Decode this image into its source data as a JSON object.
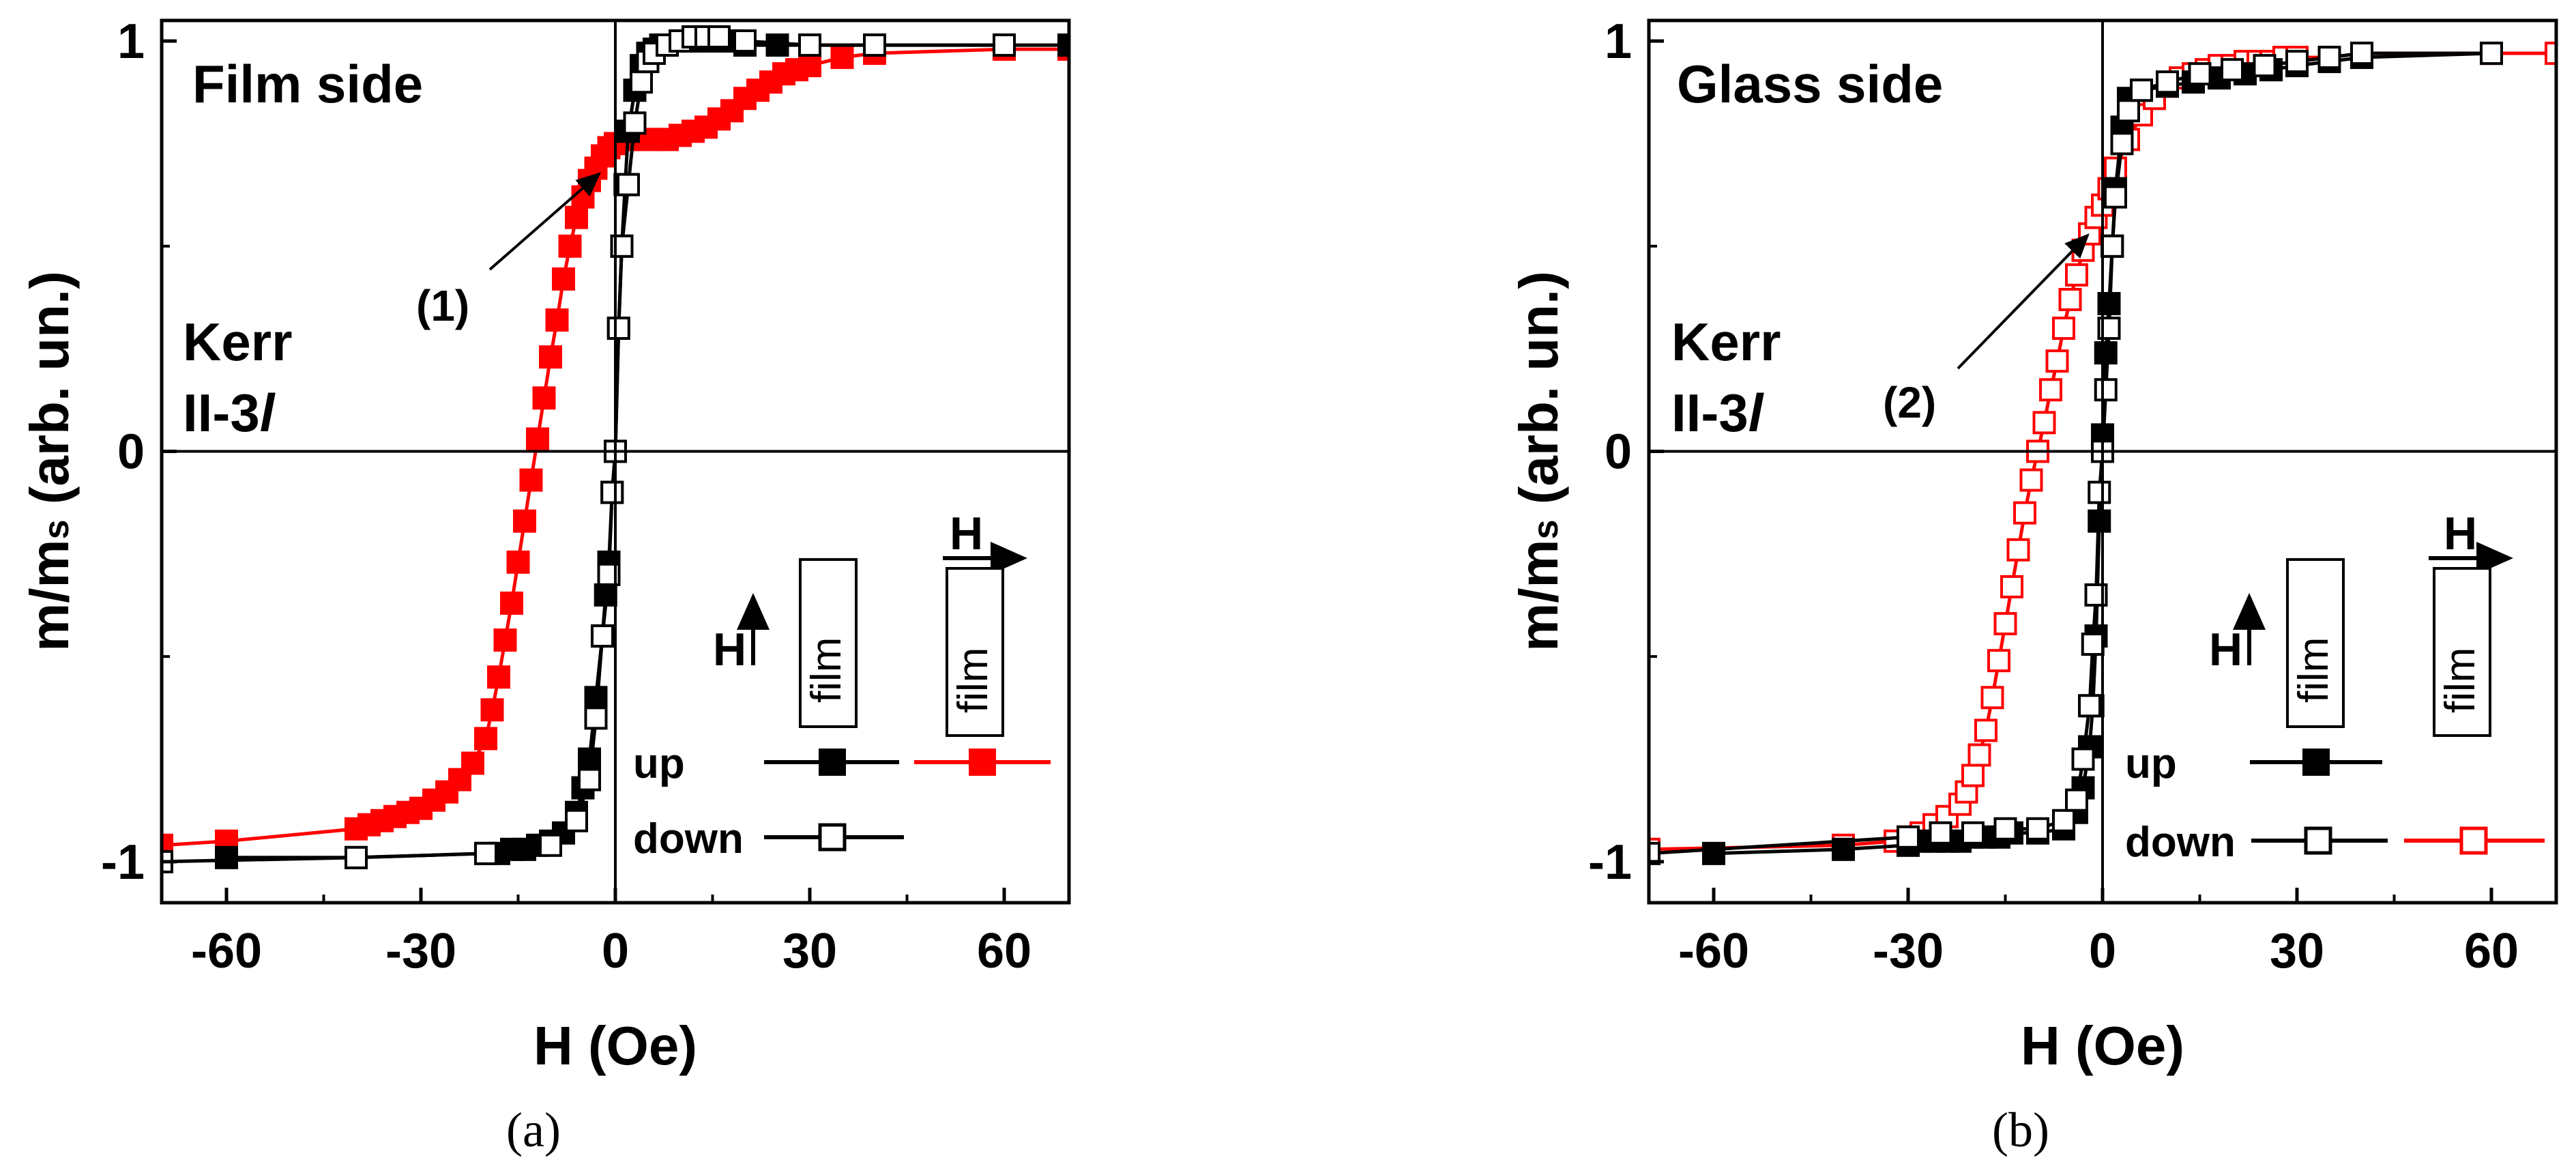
{
  "chart_data": [
    {
      "type": "line",
      "panel": "a",
      "caption": "(a)",
      "title": "Film side",
      "label_kerr": "Kerr",
      "label_config": "II-3",
      "label_config_italic": "l",
      "annotation": "(1)",
      "xlabel": "H (Oe)",
      "ylabel_main": "m/m",
      "ylabel_sub": "s",
      "ylabel_tail": " (arb. un.)",
      "xlim": [
        -70,
        70
      ],
      "ylim": [
        -1.1,
        1.05
      ],
      "xticks": [
        -60,
        -30,
        0,
        30,
        60
      ],
      "yticks": [
        -1,
        0,
        1
      ],
      "legend": {
        "up": "up",
        "down": "down",
        "field_symbol": "H",
        "film": "film"
      },
      "series": [
        {
          "name": "up (H perpendicular to film)",
          "color": "#000000",
          "marker": "filled",
          "x": [
            -60,
            -40,
            -20,
            -18,
            -16,
            -14,
            -12,
            -10,
            -8,
            -6,
            -5,
            -4,
            -3,
            -2,
            -1.5,
            -1,
            -0.5,
            0,
            0.5,
            1,
            1.5,
            2,
            3,
            4,
            5,
            6,
            7,
            8,
            10,
            12,
            14,
            16,
            18,
            20,
            25,
            30,
            40,
            60,
            70
          ],
          "y": [
            -0.99,
            -0.99,
            -0.98,
            -0.98,
            -0.97,
            -0.97,
            -0.96,
            -0.95,
            -0.93,
            -0.88,
            -0.82,
            -0.75,
            -0.6,
            -0.45,
            -0.35,
            -0.27,
            -0.1,
            0,
            0.3,
            0.5,
            0.65,
            0.78,
            0.88,
            0.94,
            0.97,
            0.98,
            0.99,
            0.99,
            1.0,
            1.0,
            1.0,
            1.0,
            1.0,
            0.99,
            0.99,
            0.99,
            0.99,
            0.99,
            0.99
          ]
        },
        {
          "name": "down (H perpendicular to film)",
          "color": "#000000",
          "marker": "open",
          "x": [
            -70,
            -40,
            -20,
            -10,
            -6,
            -4,
            -3,
            -2,
            -1,
            -0.5,
            0,
            0.5,
            1,
            2,
            3,
            4,
            5,
            6,
            8,
            10,
            12,
            14,
            16,
            20,
            30,
            40,
            60
          ],
          "y": [
            -1.0,
            -0.99,
            -0.98,
            -0.96,
            -0.9,
            -0.8,
            -0.65,
            -0.45,
            -0.3,
            -0.1,
            0.0,
            0.3,
            0.5,
            0.65,
            0.8,
            0.9,
            0.95,
            0.97,
            0.99,
            1.0,
            1.01,
            1.01,
            1.01,
            1.0,
            0.99,
            0.99,
            0.99
          ]
        },
        {
          "name": "up (H parallel to film)",
          "color": "#ff0000",
          "marker": "filled",
          "x": [
            -70,
            -60,
            -40,
            -38,
            -36,
            -34,
            -32,
            -30,
            -28,
            -26,
            -24,
            -22,
            -20,
            -19,
            -18,
            -17,
            -16,
            -15,
            -14,
            -13,
            -12,
            -11,
            -10,
            -9,
            -8,
            -7,
            -6,
            -5,
            -4,
            -3,
            -2,
            -1,
            0,
            2,
            4,
            6,
            8,
            10,
            12,
            14,
            16,
            18,
            20,
            22,
            24,
            26,
            28,
            30,
            35,
            40,
            60,
            70
          ],
          "y": [
            -0.96,
            -0.95,
            -0.92,
            -0.91,
            -0.9,
            -0.89,
            -0.88,
            -0.87,
            -0.85,
            -0.83,
            -0.8,
            -0.76,
            -0.7,
            -0.63,
            -0.55,
            -0.46,
            -0.37,
            -0.27,
            -0.17,
            -0.07,
            0.03,
            0.13,
            0.23,
            0.32,
            0.42,
            0.5,
            0.57,
            0.62,
            0.66,
            0.69,
            0.72,
            0.74,
            0.75,
            0.76,
            0.76,
            0.76,
            0.76,
            0.77,
            0.78,
            0.79,
            0.81,
            0.83,
            0.86,
            0.88,
            0.9,
            0.92,
            0.93,
            0.94,
            0.96,
            0.97,
            0.98,
            0.98
          ]
        }
      ]
    },
    {
      "type": "line",
      "panel": "b",
      "caption": "(b)",
      "title": "Glass side",
      "label_kerr": "Kerr",
      "label_config": "II-3",
      "label_config_italic": "l",
      "annotation": "(2)",
      "xlabel": "H (Oe)",
      "ylabel_main": "m/m",
      "ylabel_sub": "s",
      "ylabel_tail": " (arb. un.)",
      "xlim": [
        -70,
        70
      ],
      "ylim": [
        -1.1,
        1.05
      ],
      "xticks": [
        -60,
        -30,
        0,
        30,
        60
      ],
      "yticks": [
        -1,
        0,
        1
      ],
      "legend": {
        "up": "up",
        "down": "down",
        "field_symbol": "H",
        "film": "film"
      },
      "series": [
        {
          "name": "up (H perpendicular to film)",
          "color": "#000000",
          "marker": "filled",
          "x": [
            -60,
            -40,
            -30,
            -28,
            -26,
            -24,
            -22,
            -20,
            -18,
            -16,
            -14,
            -10,
            -6,
            -4,
            -3,
            -2,
            -1.5,
            -1,
            -0.5,
            0,
            0.5,
            1,
            1.5,
            2,
            3,
            4,
            6,
            10,
            14,
            18,
            22,
            26,
            30,
            35,
            40,
            60
          ],
          "y": [
            -0.98,
            -0.97,
            -0.96,
            -0.95,
            -0.95,
            -0.95,
            -0.95,
            -0.94,
            -0.94,
            -0.94,
            -0.93,
            -0.93,
            -0.92,
            -0.88,
            -0.82,
            -0.72,
            -0.62,
            -0.45,
            -0.17,
            0.04,
            0.24,
            0.36,
            0.5,
            0.64,
            0.79,
            0.86,
            0.88,
            0.89,
            0.9,
            0.91,
            0.92,
            0.93,
            0.94,
            0.95,
            0.96,
            0.97
          ]
        },
        {
          "name": "down (H perpendicular to film)",
          "color": "#000000",
          "marker": "open",
          "x": [
            -70,
            -30,
            -25,
            -20,
            -15,
            -10,
            -6,
            -4,
            -3,
            -2,
            -1.5,
            -1,
            -0.5,
            0,
            0.5,
            1,
            1.5,
            2,
            3,
            4,
            6,
            10,
            15,
            20,
            25,
            30,
            35,
            40,
            60
          ],
          "y": [
            -0.98,
            -0.94,
            -0.93,
            -0.93,
            -0.92,
            -0.92,
            -0.9,
            -0.85,
            -0.75,
            -0.62,
            -0.47,
            -0.35,
            -0.1,
            0.0,
            0.15,
            0.3,
            0.5,
            0.62,
            0.75,
            0.83,
            0.88,
            0.9,
            0.92,
            0.93,
            0.94,
            0.95,
            0.96,
            0.97,
            0.97
          ]
        },
        {
          "name": "down (H parallel to film)",
          "color": "#ff0000",
          "marker": "open",
          "x": [
            -70,
            -40,
            -32,
            -30,
            -28,
            -26,
            -24,
            -22,
            -21,
            -20,
            -19,
            -18,
            -17,
            -16,
            -15,
            -14,
            -13,
            -12,
            -11,
            -10,
            -9,
            -8,
            -7,
            -6,
            -5,
            -4,
            -3,
            -2,
            -1,
            0,
            1,
            2,
            4,
            6,
            8,
            10,
            12,
            14,
            16,
            18,
            20,
            22,
            24,
            26,
            28,
            30,
            35,
            40,
            60,
            70
          ],
          "y": [
            -0.97,
            -0.96,
            -0.95,
            -0.94,
            -0.93,
            -0.91,
            -0.89,
            -0.86,
            -0.83,
            -0.79,
            -0.74,
            -0.68,
            -0.6,
            -0.51,
            -0.42,
            -0.33,
            -0.24,
            -0.15,
            -0.07,
            0.0,
            0.07,
            0.15,
            0.22,
            0.3,
            0.37,
            0.43,
            0.49,
            0.53,
            0.57,
            0.6,
            0.64,
            0.69,
            0.76,
            0.82,
            0.86,
            0.89,
            0.91,
            0.92,
            0.93,
            0.94,
            0.94,
            0.95,
            0.95,
            0.95,
            0.96,
            0.96,
            0.96,
            0.97,
            0.97,
            0.97
          ]
        }
      ]
    }
  ]
}
